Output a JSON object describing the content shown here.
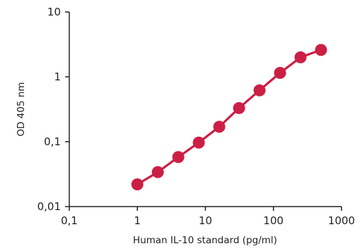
{
  "chart_data": {
    "type": "line",
    "xlabel": "Human IL-10 standard (pg/ml)",
    "ylabel": "OD 405 nm",
    "xscale": "log",
    "yscale": "log",
    "xlim": [
      0.1,
      1000
    ],
    "ylim": [
      0.01,
      10
    ],
    "x_ticks": [
      0.1,
      1,
      10,
      100,
      1000
    ],
    "x_tick_labels": [
      "0,1",
      "1",
      "10",
      "100",
      "1000"
    ],
    "y_ticks": [
      0.01,
      0.1,
      1,
      10
    ],
    "y_tick_labels": [
      "0,01",
      "0,1",
      "1",
      "10"
    ],
    "grid": false,
    "legend": "none",
    "color": "#cc1f45",
    "series": [
      {
        "x": [
          1,
          2,
          4,
          8,
          16,
          31.25,
          62.5,
          125,
          250,
          500
        ],
        "y": [
          0.022,
          0.034,
          0.058,
          0.097,
          0.17,
          0.33,
          0.62,
          1.15,
          2.0,
          2.6
        ]
      }
    ]
  }
}
